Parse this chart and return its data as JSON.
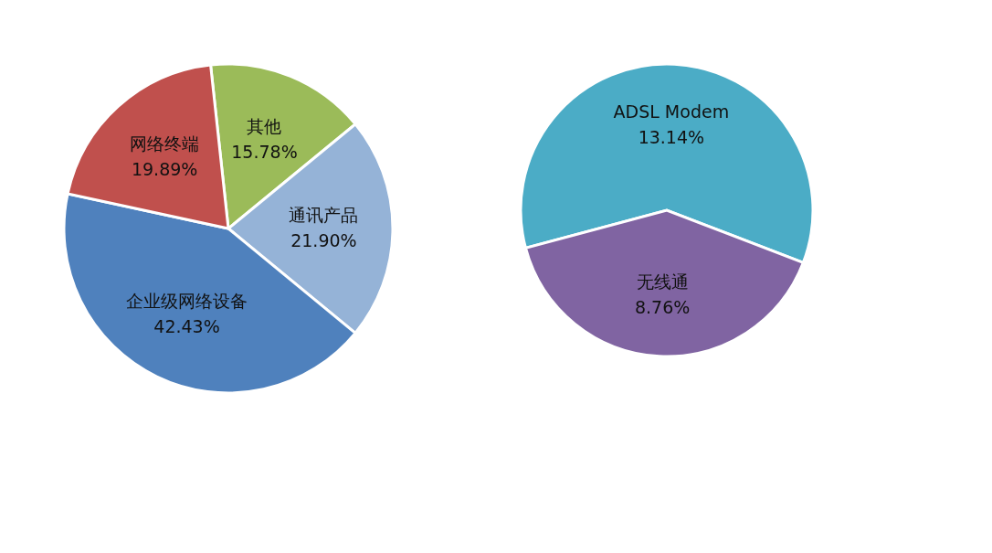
{
  "chart_data": [
    {
      "type": "pie",
      "categories": [
        "其他",
        "通讯产品",
        "企业级网络设备",
        "网络终端"
      ],
      "values": [
        15.78,
        21.9,
        42.43,
        19.89
      ],
      "colors": [
        "#9bbb59",
        "#95b3d7",
        "#4f81bd",
        "#c0504d"
      ],
      "value_labels": [
        "15.78%",
        "21.90%",
        "42.43%",
        "19.89%"
      ],
      "legend": false
    },
    {
      "type": "pie",
      "categories": [
        "ADSL Modem",
        "无线通"
      ],
      "values": [
        13.14,
        8.76
      ],
      "colors": [
        "#4bacc6",
        "#8064a2"
      ],
      "value_labels": [
        "13.14%",
        "8.76%"
      ],
      "legend": false
    }
  ]
}
